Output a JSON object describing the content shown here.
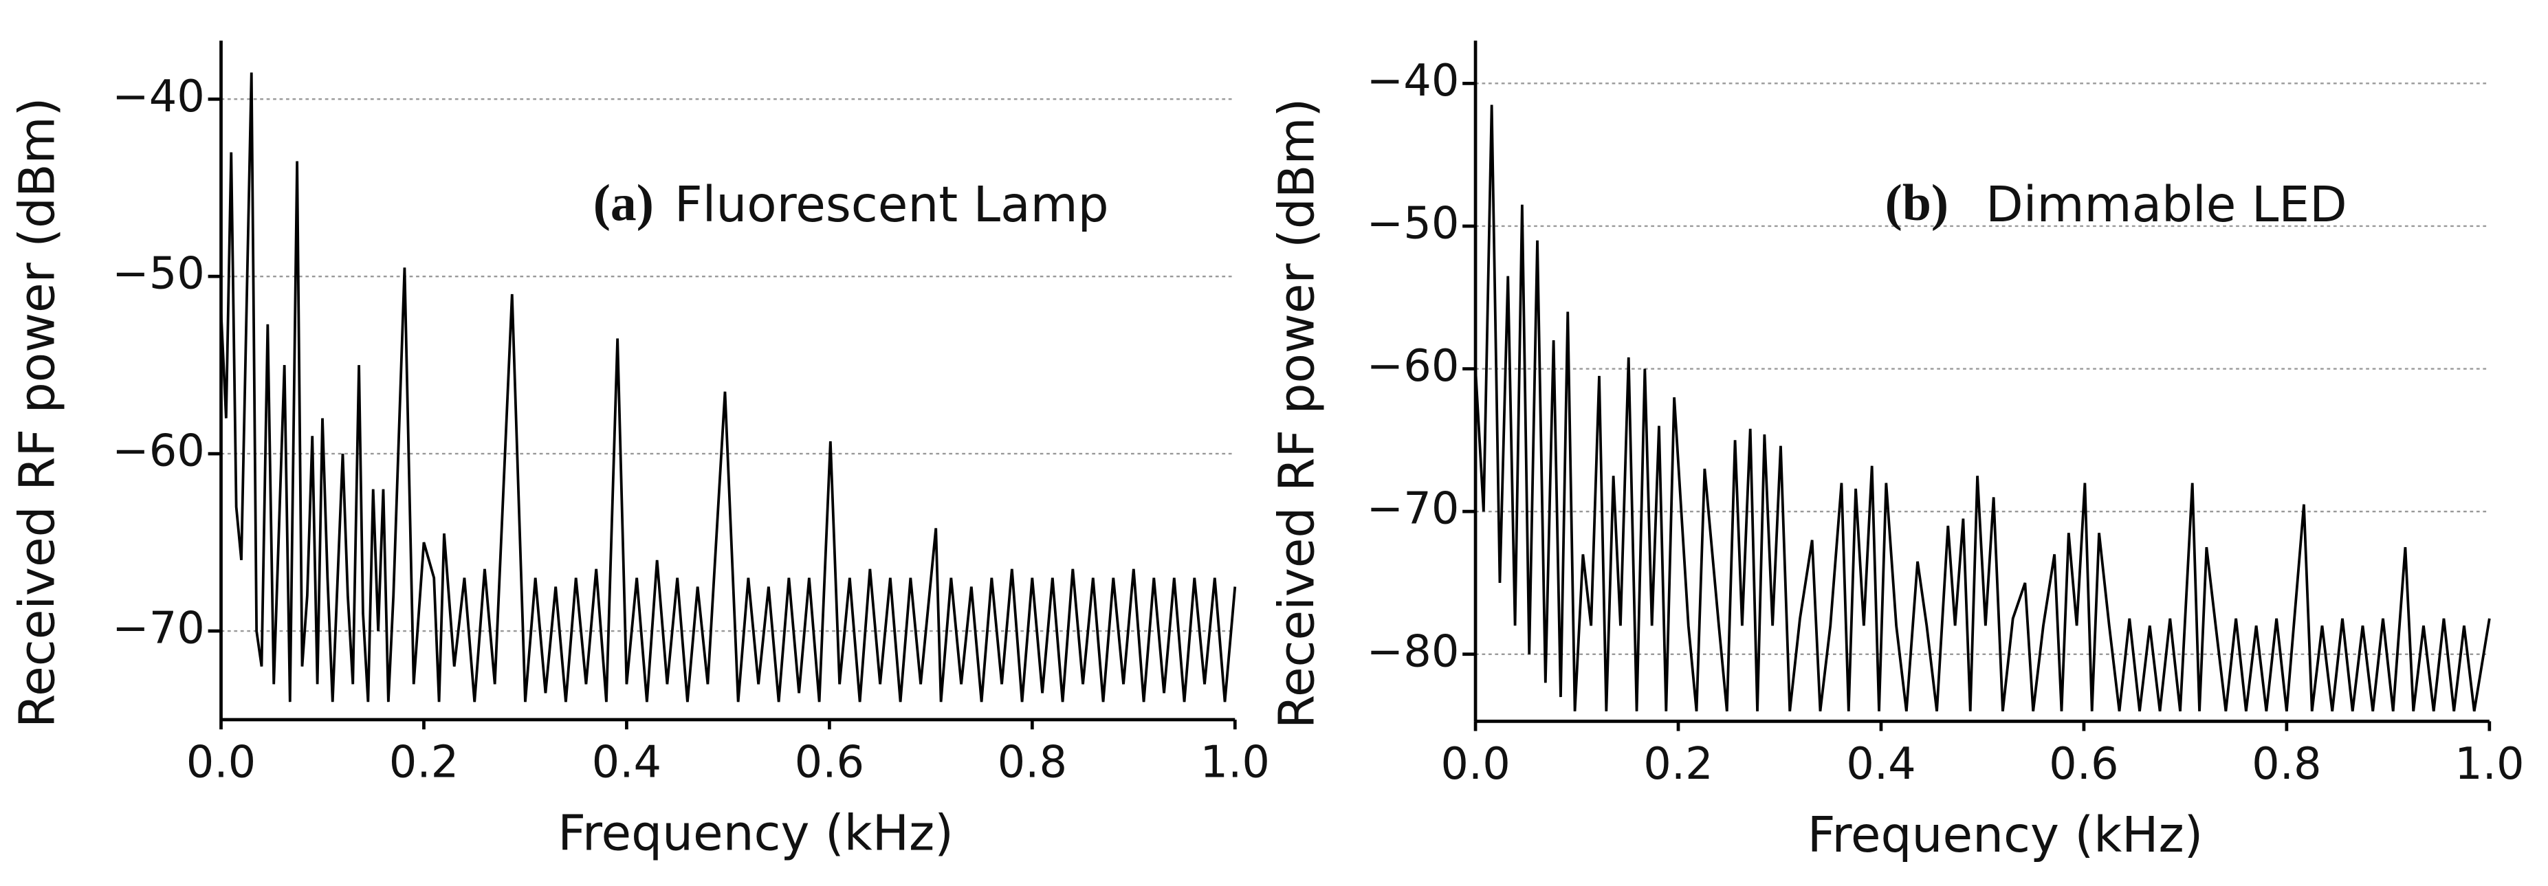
{
  "chart_data": [
    {
      "type": "line",
      "panel_label": "(a)",
      "title": "Fluorescent Lamp",
      "xlabel": "Frequency (kHz)",
      "ylabel": "Received RF power (dBm)",
      "xlim": [
        0,
        1
      ],
      "ylim": [
        -75,
        -36.7
      ],
      "xticks": [
        {
          "value": 0,
          "label": "0.0"
        },
        0.2,
        0.4,
        0.6,
        0.8,
        {
          "value": 1,
          "label": "1.0"
        }
      ],
      "yticks": [
        {
          "value": -40,
          "label": "−40"
        },
        {
          "value": -50,
          "label": "−50"
        },
        {
          "value": -60,
          "label": "−60"
        },
        {
          "value": -70,
          "label": "−70"
        }
      ],
      "grid": true,
      "color": "#000000",
      "x": [
        0,
        0.005,
        0.01,
        0.015,
        0.02,
        0.03,
        0.035,
        0.04,
        0.046,
        0.052,
        0.0625,
        0.068,
        0.075,
        0.08,
        0.085,
        0.09,
        0.095,
        0.1,
        0.105,
        0.11,
        0.12,
        0.125,
        0.13,
        0.136,
        0.14,
        0.145,
        0.15,
        0.155,
        0.16,
        0.165,
        0.17,
        0.181,
        0.19,
        0.2,
        0.21,
        0.215,
        0.22,
        0.23,
        0.24,
        0.25,
        0.26,
        0.27,
        0.287,
        0.3,
        0.31,
        0.32,
        0.33,
        0.34,
        0.35,
        0.36,
        0.37,
        0.38,
        0.391,
        0.4,
        0.41,
        0.42,
        0.43,
        0.44,
        0.45,
        0.46,
        0.47,
        0.48,
        0.497,
        0.51,
        0.52,
        0.53,
        0.54,
        0.55,
        0.56,
        0.57,
        0.58,
        0.59,
        0.601,
        0.61,
        0.62,
        0.63,
        0.64,
        0.65,
        0.66,
        0.67,
        0.68,
        0.69,
        0.705,
        0.71,
        0.72,
        0.73,
        0.74,
        0.75,
        0.76,
        0.77,
        0.78,
        0.79,
        0.8,
        0.81,
        0.82,
        0.83,
        0.84,
        0.85,
        0.86,
        0.87,
        0.88,
        0.89,
        0.9,
        0.91,
        0.92,
        0.93,
        0.94,
        0.95,
        0.96,
        0.97,
        0.98,
        0.99,
        1.0
      ],
      "values": [
        -52,
        -58,
        -43,
        -63,
        -66,
        -38.5,
        -70,
        -72,
        -52.7,
        -73,
        -55,
        -74,
        -43.5,
        -72,
        -68,
        -59,
        -73,
        -58,
        -67,
        -74,
        -60,
        -68,
        -73,
        -55,
        -69,
        -74,
        -62,
        -70,
        -62,
        -74,
        -68,
        -49.5,
        -73,
        -65,
        -67,
        -74,
        -64.5,
        -72,
        -67,
        -74,
        -66.5,
        -73,
        -51,
        -74,
        -67,
        -73.5,
        -67.5,
        -74,
        -67,
        -73,
        -66.5,
        -74,
        -53.5,
        -73,
        -67,
        -74,
        -66,
        -73,
        -67,
        -74,
        -67.5,
        -73,
        -56.5,
        -74,
        -67,
        -73,
        -67.5,
        -74,
        -67,
        -73.5,
        -67,
        -74,
        -59.3,
        -73,
        -67,
        -74,
        -66.5,
        -73,
        -67,
        -74,
        -67,
        -73,
        -64.2,
        -74,
        -67,
        -73,
        -67.5,
        -74,
        -67,
        -73,
        -66.5,
        -74,
        -67,
        -73.5,
        -67,
        -74,
        -66.5,
        -73,
        -67,
        -74,
        -67,
        -73,
        -66.5,
        -74,
        -67,
        -73.5,
        -67,
        -74,
        -67,
        -73,
        -67,
        -74,
        -67.5
      ]
    },
    {
      "type": "line",
      "panel_label": "(b)",
      "title": "Dimmable LED",
      "xlabel": "Frequency (kHz)",
      "ylabel": "Received RF power (dBm)",
      "xlim": [
        0,
        1
      ],
      "ylim": [
        -84.7,
        -37
      ],
      "xticks": [
        {
          "value": 0,
          "label": "0.0"
        },
        0.2,
        0.4,
        0.6,
        0.8,
        {
          "value": 1,
          "label": "1.0"
        }
      ],
      "yticks": [
        {
          "value": -40,
          "label": "−40"
        },
        {
          "value": -50,
          "label": "−50"
        },
        {
          "value": -60,
          "label": "−60"
        },
        {
          "value": -70,
          "label": "−70"
        },
        {
          "value": -80,
          "label": "−80"
        }
      ],
      "grid": true,
      "color": "#000000",
      "x": [
        0,
        0.008,
        0.016,
        0.024,
        0.032,
        0.039,
        0.046,
        0.053,
        0.061,
        0.069,
        0.077,
        0.084,
        0.091,
        0.098,
        0.106,
        0.114,
        0.122,
        0.129,
        0.136,
        0.143,
        0.151,
        0.159,
        0.167,
        0.174,
        0.181,
        0.188,
        0.196,
        0.21,
        0.218,
        0.226,
        0.24,
        0.248,
        0.256,
        0.263,
        0.271,
        0.278,
        0.285,
        0.293,
        0.301,
        0.31,
        0.32,
        0.332,
        0.34,
        0.35,
        0.361,
        0.368,
        0.375,
        0.383,
        0.391,
        0.398,
        0.405,
        0.415,
        0.425,
        0.436,
        0.445,
        0.455,
        0.466,
        0.473,
        0.481,
        0.488,
        0.495,
        0.503,
        0.511,
        0.52,
        0.53,
        0.542,
        0.55,
        0.56,
        0.571,
        0.578,
        0.585,
        0.593,
        0.601,
        0.608,
        0.615,
        0.625,
        0.635,
        0.645,
        0.655,
        0.665,
        0.675,
        0.685,
        0.695,
        0.707,
        0.714,
        0.721,
        0.73,
        0.74,
        0.75,
        0.76,
        0.77,
        0.78,
        0.79,
        0.8,
        0.817,
        0.825,
        0.835,
        0.845,
        0.855,
        0.865,
        0.875,
        0.885,
        0.895,
        0.905,
        0.917,
        0.925,
        0.935,
        0.945,
        0.955,
        0.965,
        0.975,
        0.985,
        1.0
      ],
      "values": [
        -60,
        -70,
        -41.5,
        -75,
        -53.5,
        -78,
        -48.5,
        -80,
        -51,
        -82,
        -58,
        -83,
        -56,
        -84,
        -73,
        -78,
        -60.5,
        -84,
        -67.5,
        -78,
        -59.2,
        -84,
        -60,
        -78,
        -64,
        -84,
        -62,
        -78,
        -84,
        -67,
        -78,
        -84,
        -65,
        -78,
        -64.2,
        -84,
        -64.6,
        -78,
        -65.4,
        -84,
        -77.5,
        -72,
        -84,
        -78,
        -68,
        -84,
        -68.4,
        -78,
        -66.8,
        -84,
        -68,
        -78,
        -84,
        -73.5,
        -78,
        -84,
        -71,
        -78,
        -70.5,
        -84,
        -67.5,
        -78,
        -69,
        -84,
        -77.5,
        -75,
        -84,
        -78,
        -73,
        -84,
        -71.5,
        -78,
        -68,
        -84,
        -71.5,
        -78,
        -84,
        -77.5,
        -84,
        -78,
        -84,
        -77.5,
        -84,
        -68,
        -84,
        -72.5,
        -78,
        -84,
        -77.5,
        -84,
        -78,
        -84,
        -77.5,
        -84,
        -69.5,
        -84,
        -78,
        -84,
        -77.5,
        -84,
        -78,
        -84,
        -77.5,
        -84,
        -72.5,
        -84,
        -78,
        -84,
        -77.5,
        -84,
        -78,
        -84,
        -77.5
      ]
    }
  ]
}
